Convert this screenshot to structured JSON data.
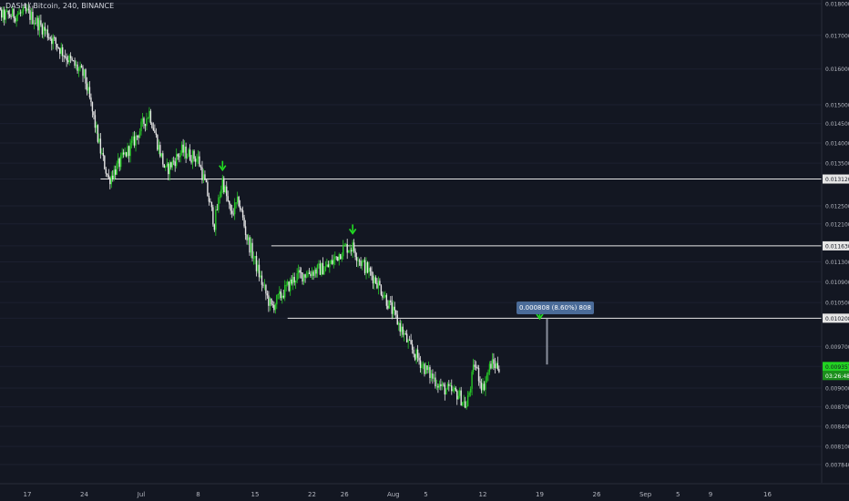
{
  "header": {
    "symbol_title": "DASH / Bitcoin, 240, BINANCE"
  },
  "colors": {
    "background": "#131722",
    "up_candle": "#26c926",
    "down_candle": "#e6e6e6",
    "level_line": "#e6e6e6",
    "arrow": "#22e022",
    "axis_text": "#b2b5be",
    "measure_label_bg": "#4a6b98",
    "last_price_bg": "#22d322",
    "countdown_bg": "#1c8f1c"
  },
  "measure": {
    "label": "0.000808 (8.60%) 808",
    "price_from": 0.00939,
    "price_to": 0.0102,
    "date": "Aug 19"
  },
  "badges": {
    "last_price": "0.009357",
    "countdown": "03:26:48"
  },
  "icons": [
    "arrow-down-icon",
    "arrow-down-icon",
    "arrow-down-icon"
  ],
  "chart_data": {
    "type": "candlestick",
    "title": "DASH / Bitcoin, 240, BINANCE",
    "y_axis_side": "right",
    "y_ticks": [
      "0.018000",
      "0.017000",
      "0.016000",
      "0.015000",
      "0.014500",
      "0.014000",
      "0.013500",
      "0.013120",
      "0.012500",
      "0.012100",
      "0.011630",
      "0.011300",
      "0.010900",
      "0.010500",
      "0.010208",
      "0.009700",
      "0.009357",
      "0.009000",
      "0.008700",
      "0.008400",
      "0.008100",
      "0.007840"
    ],
    "x_ticks": [
      "17",
      "24",
      "Jul",
      "8",
      "15",
      "22",
      "26",
      "Aug",
      "5",
      "12",
      "19",
      "26",
      "Sep",
      "5",
      "9",
      "16"
    ],
    "horizontal_levels": [
      {
        "price": 0.01312,
        "label": "0.013120",
        "start_date": "Jun 26"
      },
      {
        "price": 0.01163,
        "label": "0.011630",
        "start_date": "Jul 17"
      },
      {
        "price": 0.010208,
        "label": "0.010208",
        "start_date": "Jul 19"
      }
    ],
    "arrows": [
      {
        "date": "Jul 11",
        "price": 0.0134
      },
      {
        "date": "Jul 27",
        "price": 0.01195
      },
      {
        "date": "Aug 19",
        "price": 0.01025
      }
    ],
    "price_path": [
      {
        "date": "Jun 12",
        "price": 0.018
      },
      {
        "date": "Jun 14",
        "price": 0.0176
      },
      {
        "date": "Jun 17",
        "price": 0.0177
      },
      {
        "date": "Jun 19",
        "price": 0.0172
      },
      {
        "date": "Jun 22",
        "price": 0.0163
      },
      {
        "date": "Jun 24",
        "price": 0.0158
      },
      {
        "date": "Jun 26",
        "price": 0.0138
      },
      {
        "date": "Jun 27",
        "price": 0.0131
      },
      {
        "date": "Jun 30",
        "price": 0.014
      },
      {
        "date": "Jul 2",
        "price": 0.0148
      },
      {
        "date": "Jul 3",
        "price": 0.014
      },
      {
        "date": "Jul 4",
        "price": 0.0133
      },
      {
        "date": "Jul 6",
        "price": 0.0138
      },
      {
        "date": "Jul 8",
        "price": 0.0136
      },
      {
        "date": "Jul 9",
        "price": 0.0129
      },
      {
        "date": "Jul 10",
        "price": 0.0121
      },
      {
        "date": "Jul 11",
        "price": 0.0131
      },
      {
        "date": "Jul 12",
        "price": 0.0123
      },
      {
        "date": "Jul 13",
        "price": 0.0126
      },
      {
        "date": "Jul 14",
        "price": 0.0118
      },
      {
        "date": "Jul 16",
        "price": 0.0108
      },
      {
        "date": "Jul 17",
        "price": 0.0104
      },
      {
        "date": "Jul 18",
        "price": 0.0106
      },
      {
        "date": "Jul 20",
        "price": 0.011
      },
      {
        "date": "Jul 22",
        "price": 0.0111
      },
      {
        "date": "Jul 24",
        "price": 0.0112
      },
      {
        "date": "Jul 26",
        "price": 0.0116
      },
      {
        "date": "Jul 27",
        "price": 0.0116
      },
      {
        "date": "Jul 28",
        "price": 0.0113
      },
      {
        "date": "Jul 30",
        "price": 0.0109
      },
      {
        "date": "Aug 1",
        "price": 0.0103
      },
      {
        "date": "Aug 3",
        "price": 0.0097
      },
      {
        "date": "Aug 5",
        "price": 0.0093
      },
      {
        "date": "Aug 7",
        "price": 0.009
      },
      {
        "date": "Aug 9",
        "price": 0.0089
      },
      {
        "date": "Aug 10",
        "price": 0.0087
      },
      {
        "date": "Aug 11",
        "price": 0.0094
      },
      {
        "date": "Aug 12",
        "price": 0.009
      },
      {
        "date": "Aug 13",
        "price": 0.0094
      },
      {
        "date": "Aug 14",
        "price": 0.00936
      }
    ]
  }
}
